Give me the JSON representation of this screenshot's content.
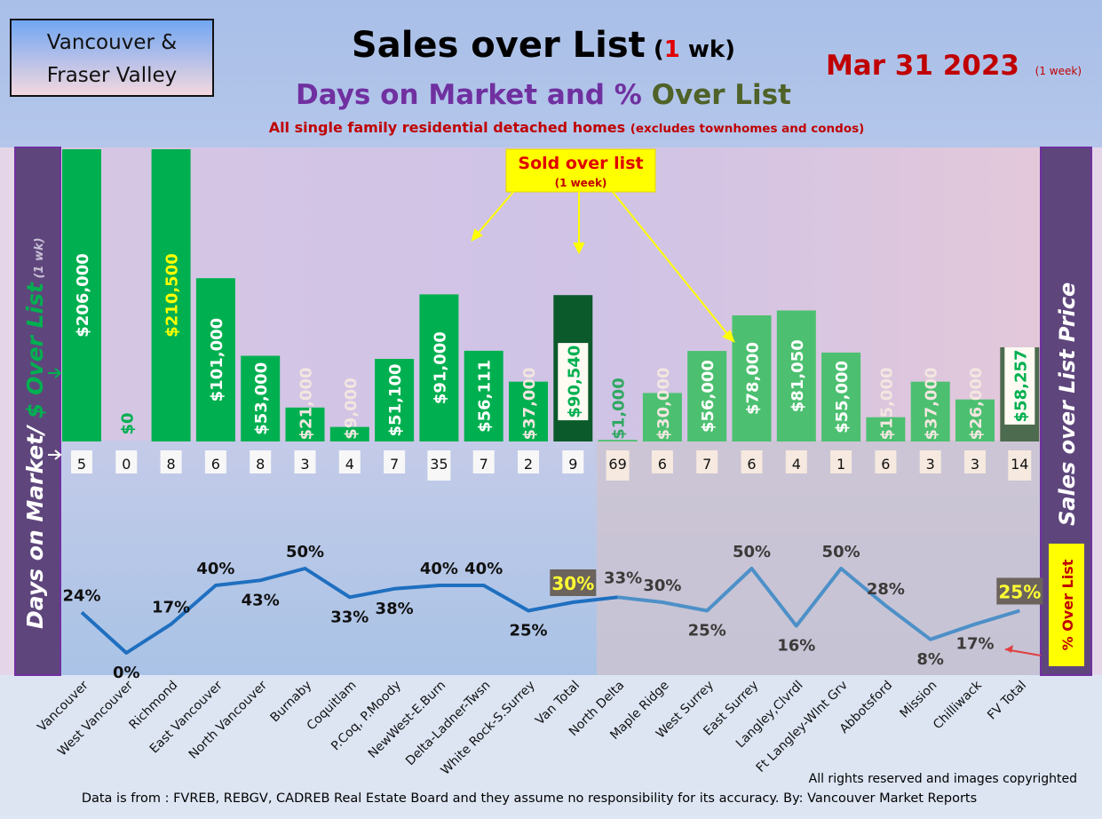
{
  "header": {
    "region_box": [
      "Vancouver &",
      "Fraser Valley"
    ],
    "title_main": "Sales over List",
    "title_paren_open": "(",
    "title_weeks": "1",
    "title_paren_close": " wk)",
    "subtitle_a": "Days on Market and % ",
    "subtitle_b": "Over List",
    "description_a": "All single family residential detached homes ",
    "description_b": "(excludes townhomes and condos)",
    "date": "Mar 31  2023",
    "date_note": "(1 week)"
  },
  "callout": {
    "line1": "Sold over list",
    "line2": "(1 week)"
  },
  "left_axis": {
    "part1": "Days on Market/ ",
    "part2": "$ Over List",
    "part3": " (1 wk)"
  },
  "right_axis": {
    "label": "Sales over List Price",
    "pct_label": "% Over List"
  },
  "footer": {
    "copyright": "All rights reserved and  images copyrighted",
    "source": "Data is from : FVREB, REBGV, CADREB Real Estate Board and they assume no responsibility for its accuracy. By: Vancouver Market Reports"
  },
  "colors": {
    "van_bar": "#00b050",
    "fv_bar": "#4cc070",
    "van_total": "#0b5a2b",
    "fv_total": "#4d6b4f",
    "van_line": "#1f6fc0",
    "fv_line": "#4d90c8"
  },
  "chart_data": {
    "type": "bar",
    "title": "Sales over List (1 wk)",
    "categories": [
      "Vancouver",
      "West Vancouver",
      "Richmond",
      "East Vancouver",
      "North Vancouver",
      "Burnaby",
      "Coquitlam",
      "P.Coq, P.Moody",
      "NewWest-E.Burn",
      "Delta-Ladner-Twsn",
      "White Rock-S.Surrey",
      "Van Total",
      "North Delta",
      "Maple Ridge",
      "West Surrey",
      "East Surrey",
      "Langley,Clvrdl",
      "Ft Langley-Wlnt Grv",
      "Abbotsford",
      "Mission",
      "Chilliwack",
      "FV Total"
    ],
    "series": [
      {
        "name": "$ Over List",
        "type": "bar",
        "values": [
          206000,
          0,
          210500,
          101000,
          53000,
          21000,
          9000,
          51100,
          91000,
          56111,
          37000,
          90540,
          1000,
          30000,
          56000,
          78000,
          81050,
          55000,
          15000,
          37000,
          26000,
          58257
        ],
        "labels": [
          "$206,000",
          "$0",
          "$210,500",
          "$101,000",
          "$53,000",
          "$21,000",
          "$9,000",
          "$51,100",
          "$91,000",
          "$56,111",
          "$37,000",
          "$90,540",
          "$1,000",
          "$30,000",
          "$56,000",
          "$78,000",
          "$81,050",
          "$55,000",
          "$15,000",
          "$37,000",
          "$26,000",
          "$58,257"
        ]
      },
      {
        "name": "Days on Market",
        "type": "table",
        "values": [
          5,
          0,
          8,
          6,
          8,
          3,
          4,
          7,
          35,
          7,
          2,
          9,
          69,
          6,
          7,
          6,
          4,
          1,
          6,
          3,
          3,
          14
        ]
      },
      {
        "name": "% Over List",
        "type": "line",
        "values": [
          24,
          0,
          17,
          40,
          43,
          50,
          33,
          38,
          40,
          40,
          25,
          30,
          33,
          30,
          25,
          50,
          16,
          50,
          28,
          8,
          17,
          25
        ]
      }
    ],
    "xlabel": "",
    "ylabel": "Days on Market/ $ Over List (1 wk)"
  }
}
